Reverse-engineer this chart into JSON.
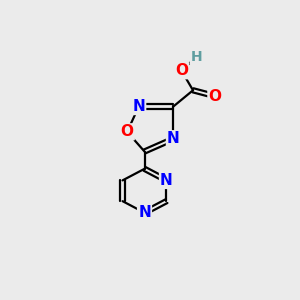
{
  "background_color": "#ebebeb",
  "bond_color": "#000000",
  "atom_colors": {
    "N": "#0000ff",
    "O": "#ff0000",
    "H": "#5f9ea0",
    "C": "#000000"
  },
  "font_size": 11,
  "fig_size": [
    3.0,
    3.0
  ],
  "dpi": 100,
  "xlim": [
    0,
    10
  ],
  "ylim": [
    0,
    10
  ]
}
